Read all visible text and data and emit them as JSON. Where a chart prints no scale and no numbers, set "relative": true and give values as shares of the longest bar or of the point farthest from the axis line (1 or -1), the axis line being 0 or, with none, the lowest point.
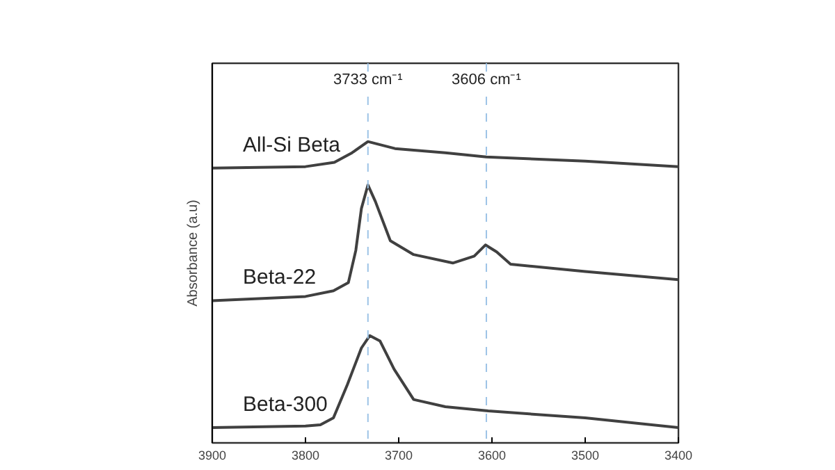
{
  "chart_data": {
    "type": "line",
    "relative": true,
    "ylabel": "Absorbance (a.u)",
    "xlim": [
      3900,
      3400
    ],
    "xticks": [
      3900,
      3800,
      3700,
      3600,
      3500,
      3400
    ],
    "grid": false,
    "line_style": "solid",
    "ref_lines": [
      {
        "axis": "x",
        "value": 3733,
        "label": "3733 cm⁻¹",
        "color": "#9dc3e6",
        "line_style": "dashed"
      },
      {
        "axis": "x",
        "value": 3606,
        "label": "3606 cm⁻¹",
        "color": "#9dc3e6",
        "line_style": "dashed"
      }
    ],
    "series": [
      {
        "name": "All-Si Beta",
        "color": "#404040",
        "x": [
          3900,
          3800,
          3769,
          3750,
          3733,
          3704,
          3650,
          3606,
          3500,
          3400
        ],
        "values": [
          0.912,
          0.917,
          0.931,
          0.963,
          1.0,
          0.977,
          0.963,
          0.949,
          0.935,
          0.917
        ]
      },
      {
        "name": "Beta-22",
        "color": "#404040",
        "x": [
          3900,
          3800,
          3770,
          3754,
          3746,
          3740,
          3733,
          3725,
          3709,
          3684,
          3642,
          3619,
          3607,
          3595,
          3580,
          3500,
          3400
        ],
        "values": [
          0.472,
          0.486,
          0.505,
          0.532,
          0.639,
          0.778,
          0.856,
          0.801,
          0.671,
          0.625,
          0.597,
          0.62,
          0.657,
          0.634,
          0.593,
          0.569,
          0.542
        ]
      },
      {
        "name": "Beta-300",
        "color": "#404040",
        "x": [
          3900,
          3800,
          3784,
          3770,
          3755,
          3740,
          3731,
          3720,
          3705,
          3684,
          3650,
          3604,
          3500,
          3400
        ],
        "values": [
          0.051,
          0.056,
          0.06,
          0.083,
          0.194,
          0.315,
          0.356,
          0.338,
          0.245,
          0.144,
          0.12,
          0.106,
          0.083,
          0.051
        ]
      }
    ]
  }
}
